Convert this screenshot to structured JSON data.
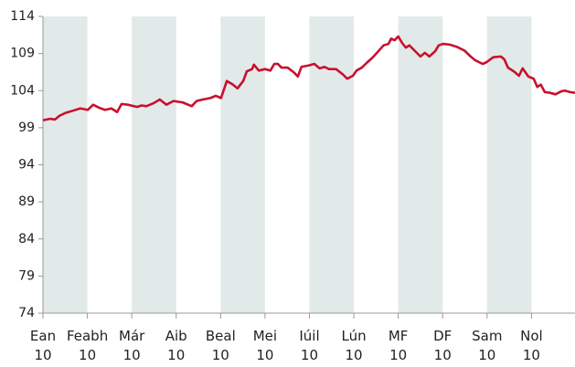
{
  "chart_data": {
    "type": "line",
    "series": [
      {
        "color": "#c8102e",
        "x": [
          0,
          0.16,
          0.27,
          0.37,
          0.51,
          0.68,
          0.84,
          1.01,
          1.13,
          1.26,
          1.4,
          1.54,
          1.67,
          1.77,
          1.91,
          2.12,
          2.22,
          2.33,
          2.49,
          2.63,
          2.78,
          2.94,
          3.15,
          3.35,
          3.46,
          3.6,
          3.77,
          3.89,
          4.01,
          4.14,
          4.28,
          4.38,
          4.51,
          4.59,
          4.71,
          4.75,
          4.86,
          5.0,
          5.12,
          5.21,
          5.29,
          5.37,
          5.51,
          5.66,
          5.74,
          5.82,
          5.99,
          6.11,
          6.23,
          6.34,
          6.44,
          6.6,
          6.75,
          6.85,
          6.98,
          7.06,
          7.18,
          7.3,
          7.43,
          7.55,
          7.67,
          7.78,
          7.84,
          7.92,
          8.0,
          8.09,
          8.17,
          8.25,
          8.4,
          8.5,
          8.6,
          8.7,
          8.83,
          8.91,
          9.01,
          9.16,
          9.32,
          9.49,
          9.63,
          9.73,
          9.9,
          9.98,
          10.14,
          10.31,
          10.39,
          10.47,
          10.6,
          10.72,
          10.8,
          10.93,
          11.05,
          11.13,
          11.21,
          11.3,
          11.42,
          11.54,
          11.67,
          11.75,
          11.87,
          11.98
        ],
        "values": [
          100.0,
          100.2,
          100.1,
          100.6,
          101.0,
          101.3,
          101.6,
          101.4,
          102.1,
          101.7,
          101.4,
          101.6,
          101.1,
          102.2,
          102.1,
          101.8,
          102.0,
          101.9,
          102.3,
          102.8,
          102.1,
          102.6,
          102.4,
          101.9,
          102.6,
          102.8,
          103.0,
          103.3,
          103.0,
          105.3,
          104.8,
          104.3,
          105.3,
          106.6,
          106.9,
          107.5,
          106.7,
          106.9,
          106.7,
          107.6,
          107.6,
          107.1,
          107.1,
          106.4,
          105.9,
          107.2,
          107.4,
          107.6,
          107.0,
          107.2,
          106.9,
          106.9,
          106.2,
          105.6,
          106.0,
          106.7,
          107.1,
          107.8,
          108.5,
          109.3,
          110.1,
          110.3,
          111.0,
          110.8,
          111.3,
          110.4,
          109.8,
          110.1,
          109.2,
          108.6,
          109.1,
          108.6,
          109.3,
          110.1,
          110.3,
          110.2,
          109.9,
          109.4,
          108.6,
          108.1,
          107.6,
          107.8,
          108.5,
          108.6,
          108.2,
          107.1,
          106.6,
          106.0,
          107.0,
          105.9,
          105.6,
          104.5,
          104.8,
          103.8,
          103.7,
          103.5,
          103.9,
          104.0,
          103.8,
          103.7
        ]
      }
    ],
    "xlim": [
      0,
      11.98
    ],
    "xticks": [
      {
        "value": 0,
        "label": "Ean 10"
      },
      {
        "value": 1,
        "label": "Feabh 10"
      },
      {
        "value": 2,
        "label": "Már 10"
      },
      {
        "value": 3,
        "label": "Aib 10"
      },
      {
        "value": 4,
        "label": "Beal 10"
      },
      {
        "value": 5,
        "label": "Mei 10"
      },
      {
        "value": 6,
        "label": "Iúil 10"
      },
      {
        "value": 7,
        "label": "Lún 10"
      },
      {
        "value": 8,
        "label": "MF 10"
      },
      {
        "value": 9,
        "label": "DF 10"
      },
      {
        "value": 10,
        "label": "Sam 10"
      },
      {
        "value": 11,
        "label": "Nol 10"
      }
    ],
    "ylim": [
      74,
      114
    ],
    "yticks": [
      74,
      79,
      84,
      89,
      94,
      99,
      104,
      109,
      114
    ],
    "band_color": "#e2eae9"
  }
}
